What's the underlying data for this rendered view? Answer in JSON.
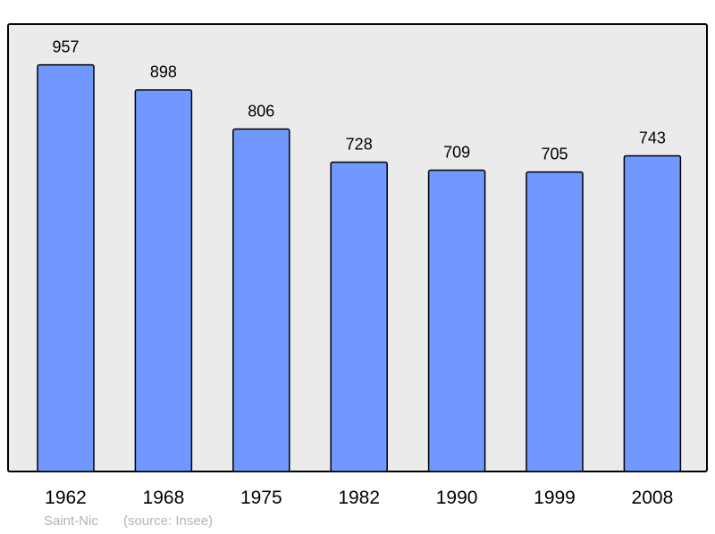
{
  "chart_data": {
    "type": "bar",
    "title": "",
    "xlabel": "",
    "ylabel": "",
    "categories": [
      "1962",
      "1968",
      "1975",
      "1982",
      "1990",
      "1999",
      "2008"
    ],
    "values": [
      957,
      898,
      806,
      728,
      709,
      705,
      743
    ],
    "data_labels": [
      "957",
      "898",
      "806",
      "728",
      "709",
      "705",
      "743"
    ],
    "ylim": [
      0,
      1053
    ],
    "grid": false,
    "bar_color": "#7098ff",
    "background_color": "#ebebeb"
  },
  "footer": {
    "place": "Saint-Nic",
    "source": "(source: Insee)"
  }
}
